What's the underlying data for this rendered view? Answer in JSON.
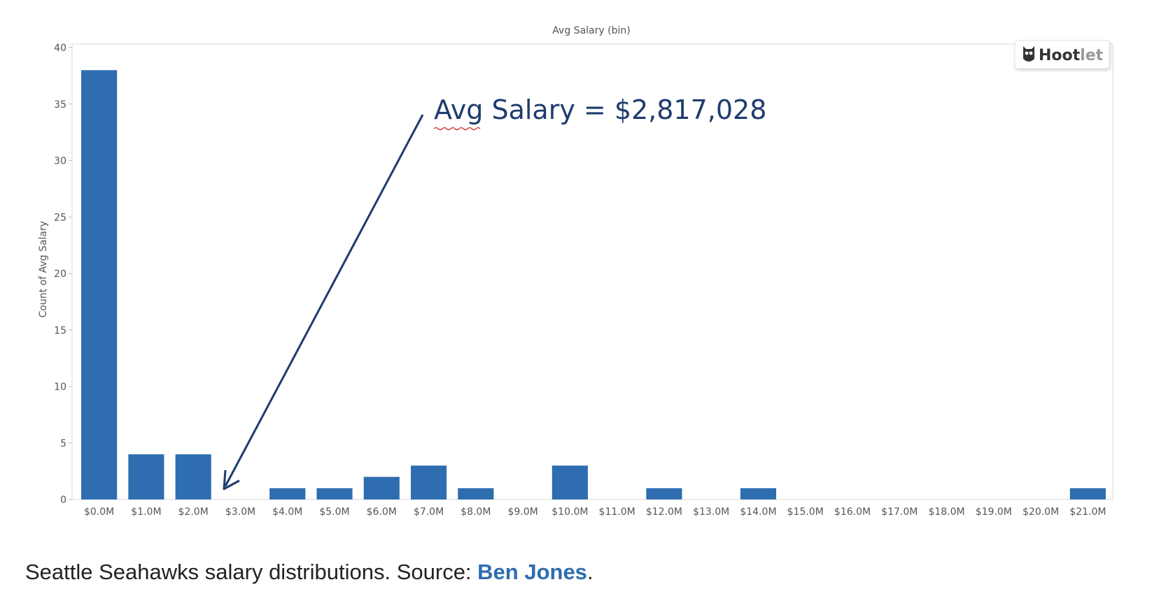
{
  "chart_data": {
    "type": "bar",
    "title": "Avg Salary (bin)",
    "xlabel": "",
    "ylabel": "Count of Avg Salary",
    "categories": [
      "$0.0M",
      "$1.0M",
      "$2.0M",
      "$3.0M",
      "$4.0M",
      "$5.0M",
      "$6.0M",
      "$7.0M",
      "$8.0M",
      "$9.0M",
      "$10.0M",
      "$11.0M",
      "$12.0M",
      "$13.0M",
      "$14.0M",
      "$15.0M",
      "$16.0M",
      "$17.0M",
      "$18.0M",
      "$19.0M",
      "$20.0M",
      "$21.0M"
    ],
    "values": [
      38,
      4,
      4,
      0,
      1,
      1,
      2,
      3,
      1,
      0,
      3,
      0,
      1,
      0,
      1,
      0,
      0,
      0,
      0,
      0,
      0,
      1
    ],
    "ylim": [
      0,
      40
    ],
    "yticks": [
      "0",
      "5",
      "10",
      "15",
      "20",
      "25",
      "30",
      "35",
      "40"
    ],
    "bar_color": "#2e6db0",
    "grid": false,
    "annotation": {
      "text": "Avg Salary = $2,817,028",
      "points_to": "$3.0M"
    }
  },
  "watermark": {
    "text_dark": "Hoot",
    "text_light": "let",
    "icon": "owl-icon"
  },
  "caption": {
    "text": "Seattle Seahawks salary distributions. Source: ",
    "link": "Ben Jones",
    "end": "."
  }
}
